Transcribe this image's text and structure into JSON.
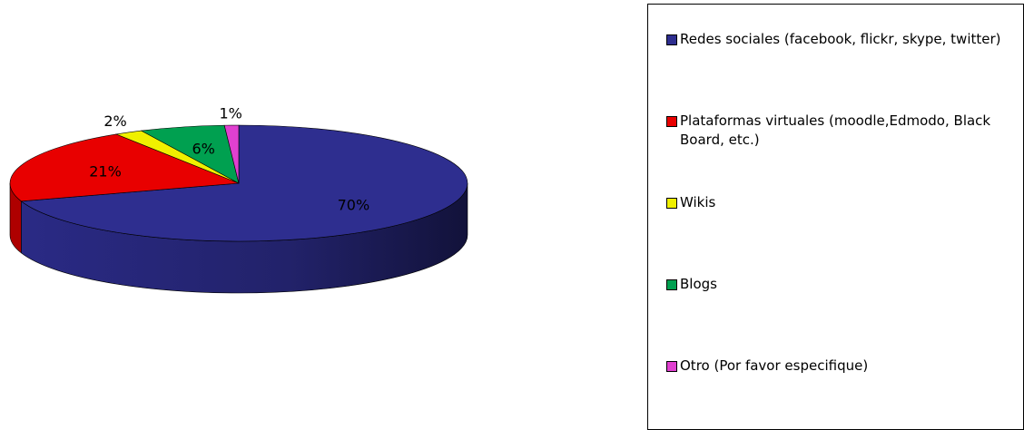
{
  "chart_data": {
    "type": "pie",
    "title": "",
    "categories": [
      "Redes sociales (facebook, flickr, skype, twitter)",
      "Plataformas virtuales (moodle,Edmodo, Black Board, etc.)",
      "Wikis",
      "Blogs",
      "Otro (Por favor especifique)"
    ],
    "values": [
      70,
      21,
      2,
      6,
      1
    ],
    "labels": [
      "70%",
      "21%",
      "2%",
      "6%",
      "1%"
    ],
    "colors": [
      "#2E2E8F",
      "#E80000",
      "#F0F000",
      "#00A050",
      "#E040D0"
    ],
    "legend_position": "right"
  }
}
